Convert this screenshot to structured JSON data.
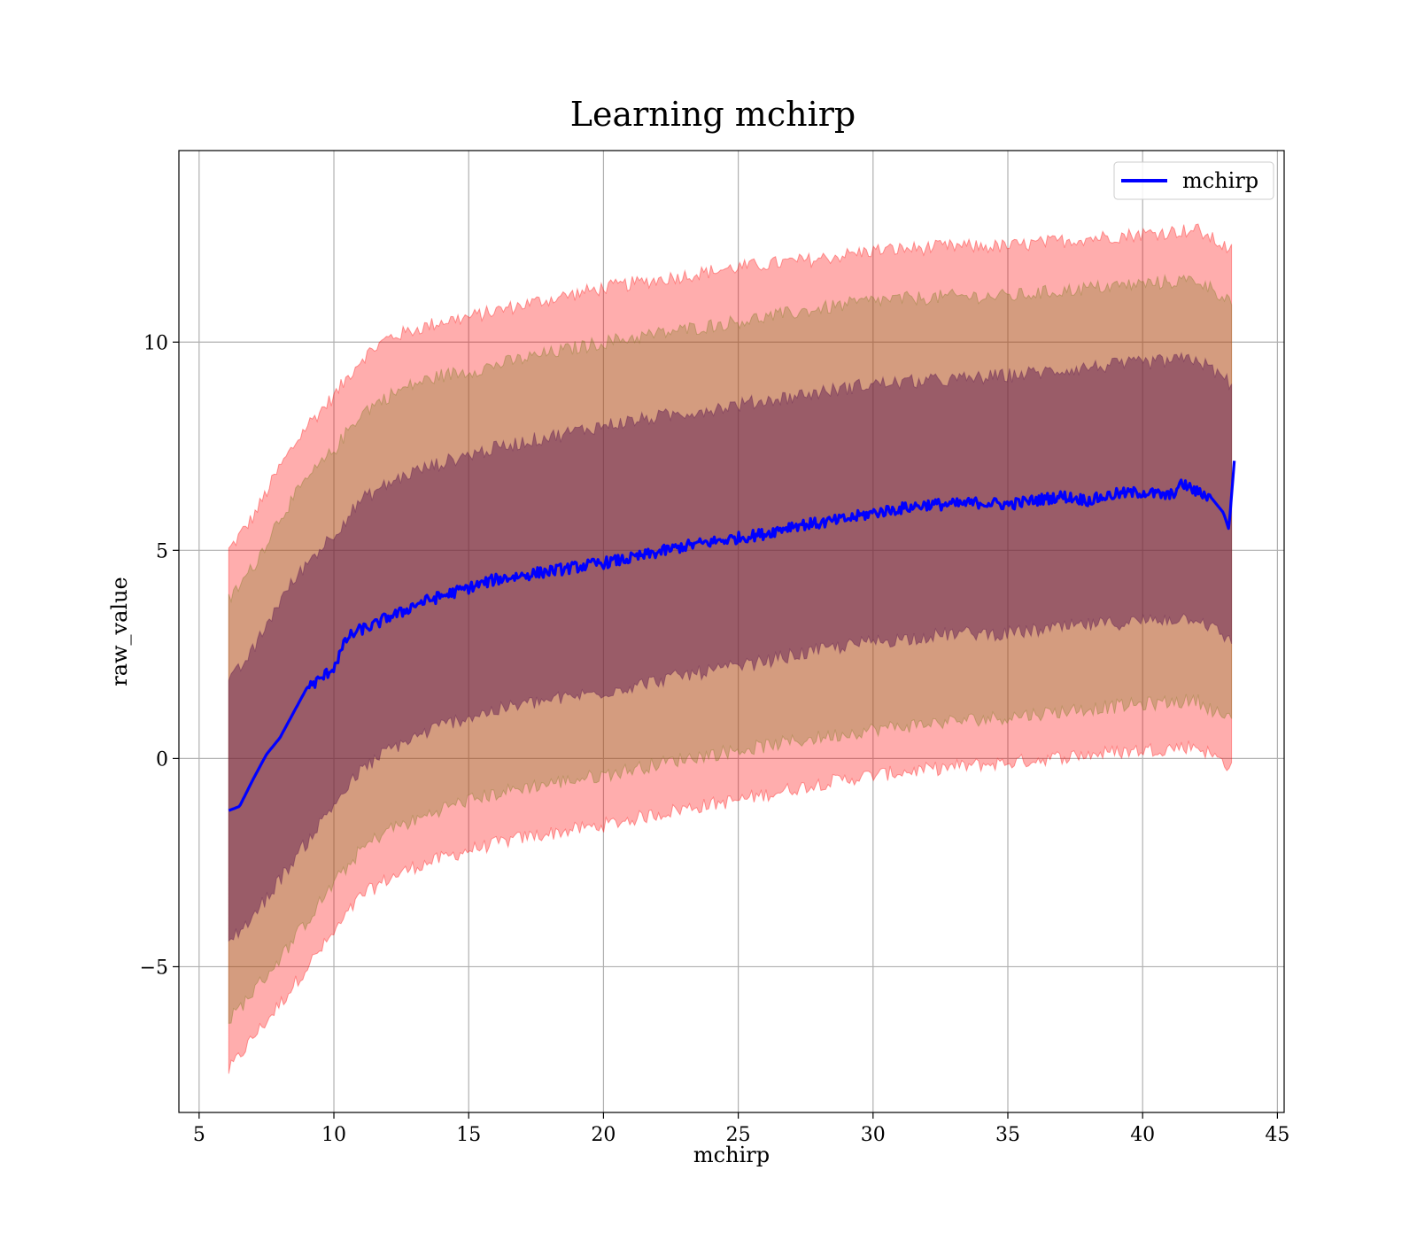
{
  "chart_data": {
    "type": "line",
    "title": "Learning mchirp",
    "xlabel": "mchirp",
    "ylabel": "raw_value",
    "xlim": [
      4.25,
      45.25
    ],
    "ylim": [
      -8.5,
      14.6
    ],
    "xticks": [
      5,
      10,
      15,
      20,
      25,
      30,
      35,
      40,
      45
    ],
    "yticks": [
      -5,
      0,
      5,
      10
    ],
    "ytick_labels": [
      "−5",
      "0",
      "5",
      "10"
    ],
    "grid": true,
    "legend_position": "top-right",
    "series": [
      {
        "name": "mchirp",
        "color": "#0000ff",
        "x": [
          6.1,
          6.5,
          7.0,
          7.5,
          8.0,
          8.5,
          9.0,
          9.5,
          10.0,
          10.5,
          11.0,
          11.5,
          12.0,
          12.5,
          13.0,
          14.0,
          15.0,
          16.0,
          17.0,
          18.0,
          19.0,
          20.0,
          21.0,
          22.0,
          23.0,
          24.0,
          25.0,
          26.0,
          27.0,
          28.0,
          29.0,
          30.0,
          31.0,
          32.0,
          33.0,
          34.0,
          35.0,
          36.0,
          37.0,
          38.0,
          39.0,
          40.0,
          41.0,
          41.5,
          42.0,
          42.5,
          43.0,
          43.2,
          43.4
        ],
        "values": [
          -1.25,
          -1.15,
          -0.5,
          0.1,
          0.5,
          1.1,
          1.7,
          1.9,
          2.2,
          2.9,
          3.1,
          3.2,
          3.4,
          3.5,
          3.7,
          3.9,
          4.1,
          4.3,
          4.4,
          4.5,
          4.6,
          4.7,
          4.8,
          4.95,
          5.1,
          5.2,
          5.3,
          5.4,
          5.6,
          5.65,
          5.75,
          5.9,
          6.0,
          6.1,
          6.1,
          6.15,
          6.1,
          6.2,
          6.3,
          6.2,
          6.35,
          6.4,
          6.3,
          6.6,
          6.4,
          6.3,
          5.9,
          5.5,
          7.15
        ]
      }
    ],
    "bands": [
      {
        "color": "#ff0000",
        "opacity": 0.32,
        "x": [
          6.1,
          7,
          8,
          9,
          10,
          11,
          12,
          13,
          14,
          15,
          17,
          20,
          23,
          25,
          28,
          30,
          33,
          35,
          38,
          40,
          42,
          43.3
        ],
        "upper": [
          5.0,
          5.8,
          7.0,
          8.0,
          8.7,
          9.6,
          10.1,
          10.3,
          10.5,
          10.6,
          10.9,
          11.3,
          11.6,
          11.8,
          12.0,
          12.2,
          12.3,
          12.3,
          12.5,
          12.6,
          12.7,
          12.2
        ],
        "lower": [
          -7.5,
          -6.7,
          -5.9,
          -5.0,
          -4.2,
          -3.3,
          -2.9,
          -2.6,
          -2.4,
          -2.2,
          -1.9,
          -1.6,
          -1.2,
          -1.0,
          -0.6,
          -0.4,
          -0.2,
          -0.1,
          0.1,
          0.2,
          0.3,
          -0.2
        ]
      },
      {
        "color": "#7a7a1e",
        "opacity": 0.32,
        "x": [
          6.1,
          7,
          8,
          9,
          10,
          11,
          12,
          13,
          14,
          15,
          17,
          20,
          23,
          25,
          28,
          30,
          33,
          35,
          38,
          40,
          42,
          43.3
        ],
        "upper": [
          3.8,
          4.6,
          5.8,
          6.7,
          7.4,
          8.3,
          8.7,
          9.0,
          9.2,
          9.3,
          9.6,
          10.0,
          10.3,
          10.5,
          10.8,
          11.0,
          11.1,
          11.1,
          11.3,
          11.4,
          11.5,
          11.0
        ],
        "lower": [
          -6.3,
          -5.6,
          -4.8,
          -3.9,
          -3.0,
          -2.2,
          -1.7,
          -1.5,
          -1.2,
          -1.0,
          -0.7,
          -0.4,
          0.0,
          0.2,
          0.5,
          0.7,
          0.9,
          1.0,
          1.2,
          1.3,
          1.4,
          0.9
        ]
      },
      {
        "color": "#55104e",
        "opacity": 0.45,
        "x": [
          6.1,
          7,
          8,
          9,
          10,
          11,
          12,
          13,
          14,
          15,
          17,
          20,
          23,
          25,
          28,
          30,
          33,
          35,
          38,
          40,
          42,
          43.3
        ],
        "upper": [
          1.8,
          2.6,
          3.8,
          4.7,
          5.4,
          6.2,
          6.6,
          6.9,
          7.1,
          7.3,
          7.6,
          8.0,
          8.3,
          8.5,
          8.8,
          9.0,
          9.1,
          9.2,
          9.4,
          9.5,
          9.6,
          9.0
        ],
        "lower": [
          -4.4,
          -3.8,
          -2.9,
          -2.0,
          -1.1,
          -0.3,
          0.2,
          0.5,
          0.8,
          1.0,
          1.3,
          1.6,
          2.0,
          2.2,
          2.6,
          2.8,
          3.0,
          3.0,
          3.2,
          3.3,
          3.4,
          2.8
        ]
      }
    ]
  }
}
